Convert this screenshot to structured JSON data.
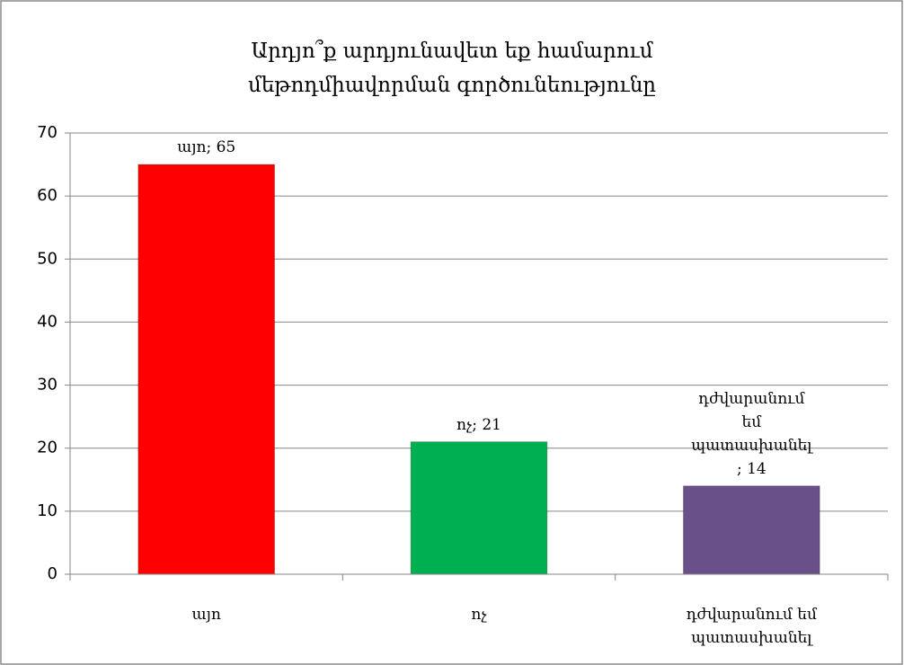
{
  "chart_data": {
    "type": "bar",
    "title": [
      "Արդյո՞ք արդյունավետ եք համարում",
      "մեթոդմիավորման գործունեությունը"
    ],
    "categories": [
      "այո",
      "ոչ",
      "դժվարանում եմ պատասխանել"
    ],
    "values": [
      65,
      21,
      14
    ],
    "value_labels": [
      "այո; 65",
      "ոչ; 21",
      "դժվարանում եմ պատասխանել ; 14"
    ],
    "colors": [
      "#ff0000",
      "#00b050",
      "#6a5089"
    ],
    "ylim": [
      0,
      70
    ],
    "yticks": [
      0,
      10,
      20,
      30,
      40,
      50,
      60,
      70
    ],
    "grid": true
  }
}
